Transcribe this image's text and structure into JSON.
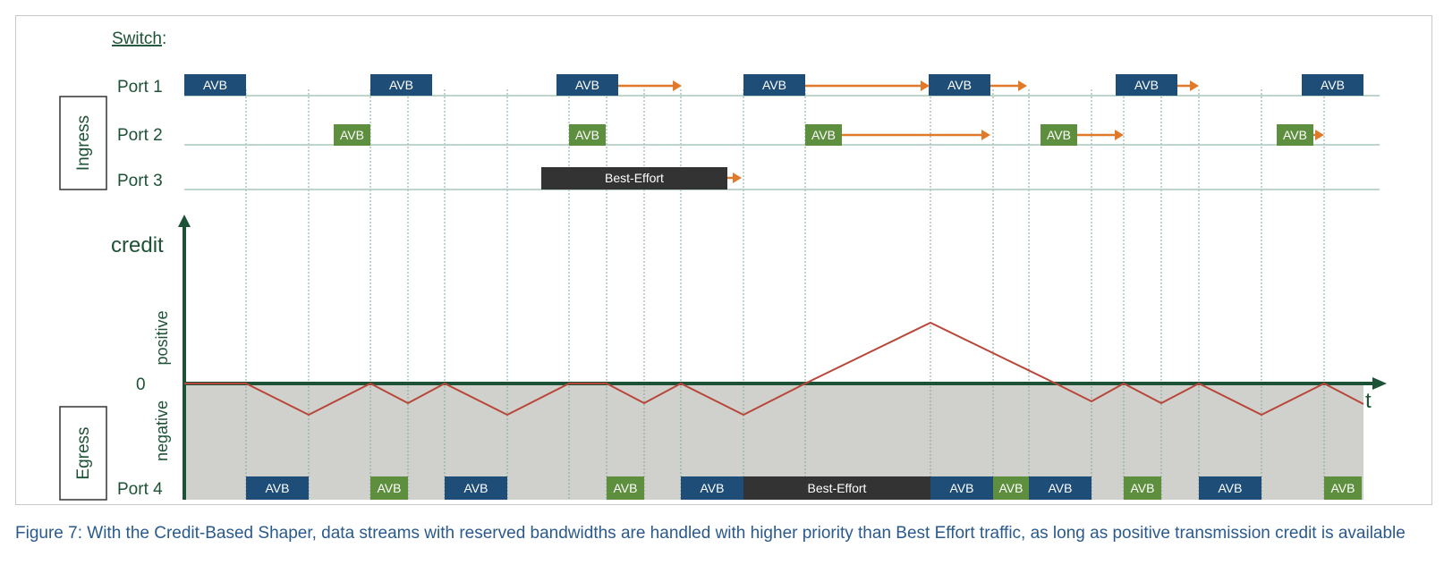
{
  "switch_label": "Switch",
  "switch_colon": ":",
  "ingress_label": "Ingress",
  "egress_label": "Egress",
  "ports": {
    "p1": "Port 1",
    "p2": "Port 2",
    "p3": "Port 3",
    "p4": "Port 4"
  },
  "axis": {
    "credit": "credit",
    "zero": "0",
    "positive": "positive",
    "negative": "negative",
    "t": "t"
  },
  "colors": {
    "avb_port1": "#1e4d78",
    "avb_port2": "#5e8f3e",
    "best_effort": "#333333",
    "arrow": "#e07a2a",
    "credit_line": "#b8473a",
    "axis": "#1d5236",
    "negative_fill": "#d0d1cd",
    "grid": "#7fa898"
  },
  "blocks": {
    "port1": [
      "AVB",
      "AVB",
      "AVB",
      "AVB",
      "AVB",
      "AVB",
      "AVB"
    ],
    "port2": [
      "AVB",
      "AVB",
      "AVB",
      "AVB",
      "AVB"
    ],
    "port3": [
      "Best-Effort"
    ],
    "port4": [
      "AVB",
      "AVB",
      "AVB",
      "AVB",
      "AVB",
      "Best-Effort",
      "AVB",
      "AVB",
      "AVB",
      "AVB",
      "AVB",
      "AVB"
    ]
  },
  "caption": "Figure 7: With the Credit-Based Shaper, data streams with reserved bandwidths are handled with higher priority than Best Effort traffic, as long as positive transmission credit is available"
}
